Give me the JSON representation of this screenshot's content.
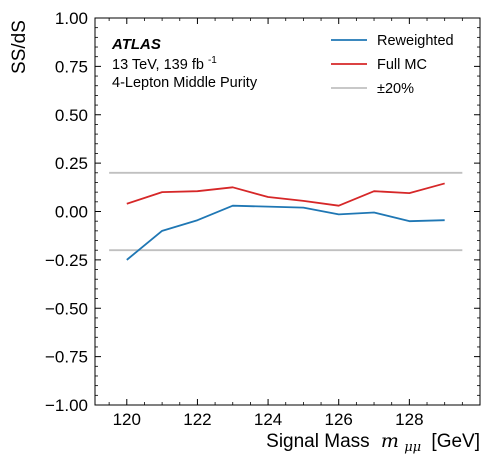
{
  "chart_data": {
    "type": "line",
    "xlabel": "Signal Mass",
    "xlabel_math": "m",
    "xlabel_sub": "μμ",
    "xlabel_unit": "[GeV]",
    "ylabel": "SS/dS",
    "xlim": [
      119.1,
      130.0
    ],
    "ylim": [
      -1.0,
      1.0
    ],
    "x_ticks": [
      120,
      122,
      124,
      126,
      128
    ],
    "x_tick_labels": [
      "120",
      "122",
      "124",
      "126",
      "128"
    ],
    "y_ticks": [
      -1.0,
      -0.75,
      -0.5,
      -0.25,
      0.0,
      0.25,
      0.5,
      0.75,
      1.0
    ],
    "y_tick_labels": [
      "−1.00",
      "−0.75",
      "−0.50",
      "−0.25",
      "0.00",
      "0.25",
      "0.50",
      "0.75",
      "1.00"
    ],
    "x": [
      120,
      121,
      122,
      123,
      124,
      125,
      126,
      127,
      128,
      129
    ],
    "series": [
      {
        "name": "Reweighted",
        "color": "#1f77b4",
        "values": [
          -0.25,
          -0.1,
          -0.045,
          0.03,
          0.025,
          0.02,
          -0.015,
          -0.005,
          -0.05,
          -0.045
        ]
      },
      {
        "name": "Full MC",
        "color": "#d62728",
        "values": [
          0.04,
          0.1,
          0.105,
          0.125,
          0.075,
          0.055,
          0.03,
          0.105,
          0.095,
          0.145
        ]
      }
    ],
    "bands": [
      {
        "name": "±20%",
        "color": "#c0c0c0",
        "values": [
          0.2,
          -0.2
        ],
        "x_range": [
          119.5,
          129.5
        ]
      }
    ],
    "annotation": {
      "experiment": "ATLAS",
      "energy_text": "13 TeV, 139 fb",
      "energy_sup": "-1",
      "category": "4-Lepton Middle Purity"
    },
    "legend_position": "top-right",
    "grid": false
  }
}
